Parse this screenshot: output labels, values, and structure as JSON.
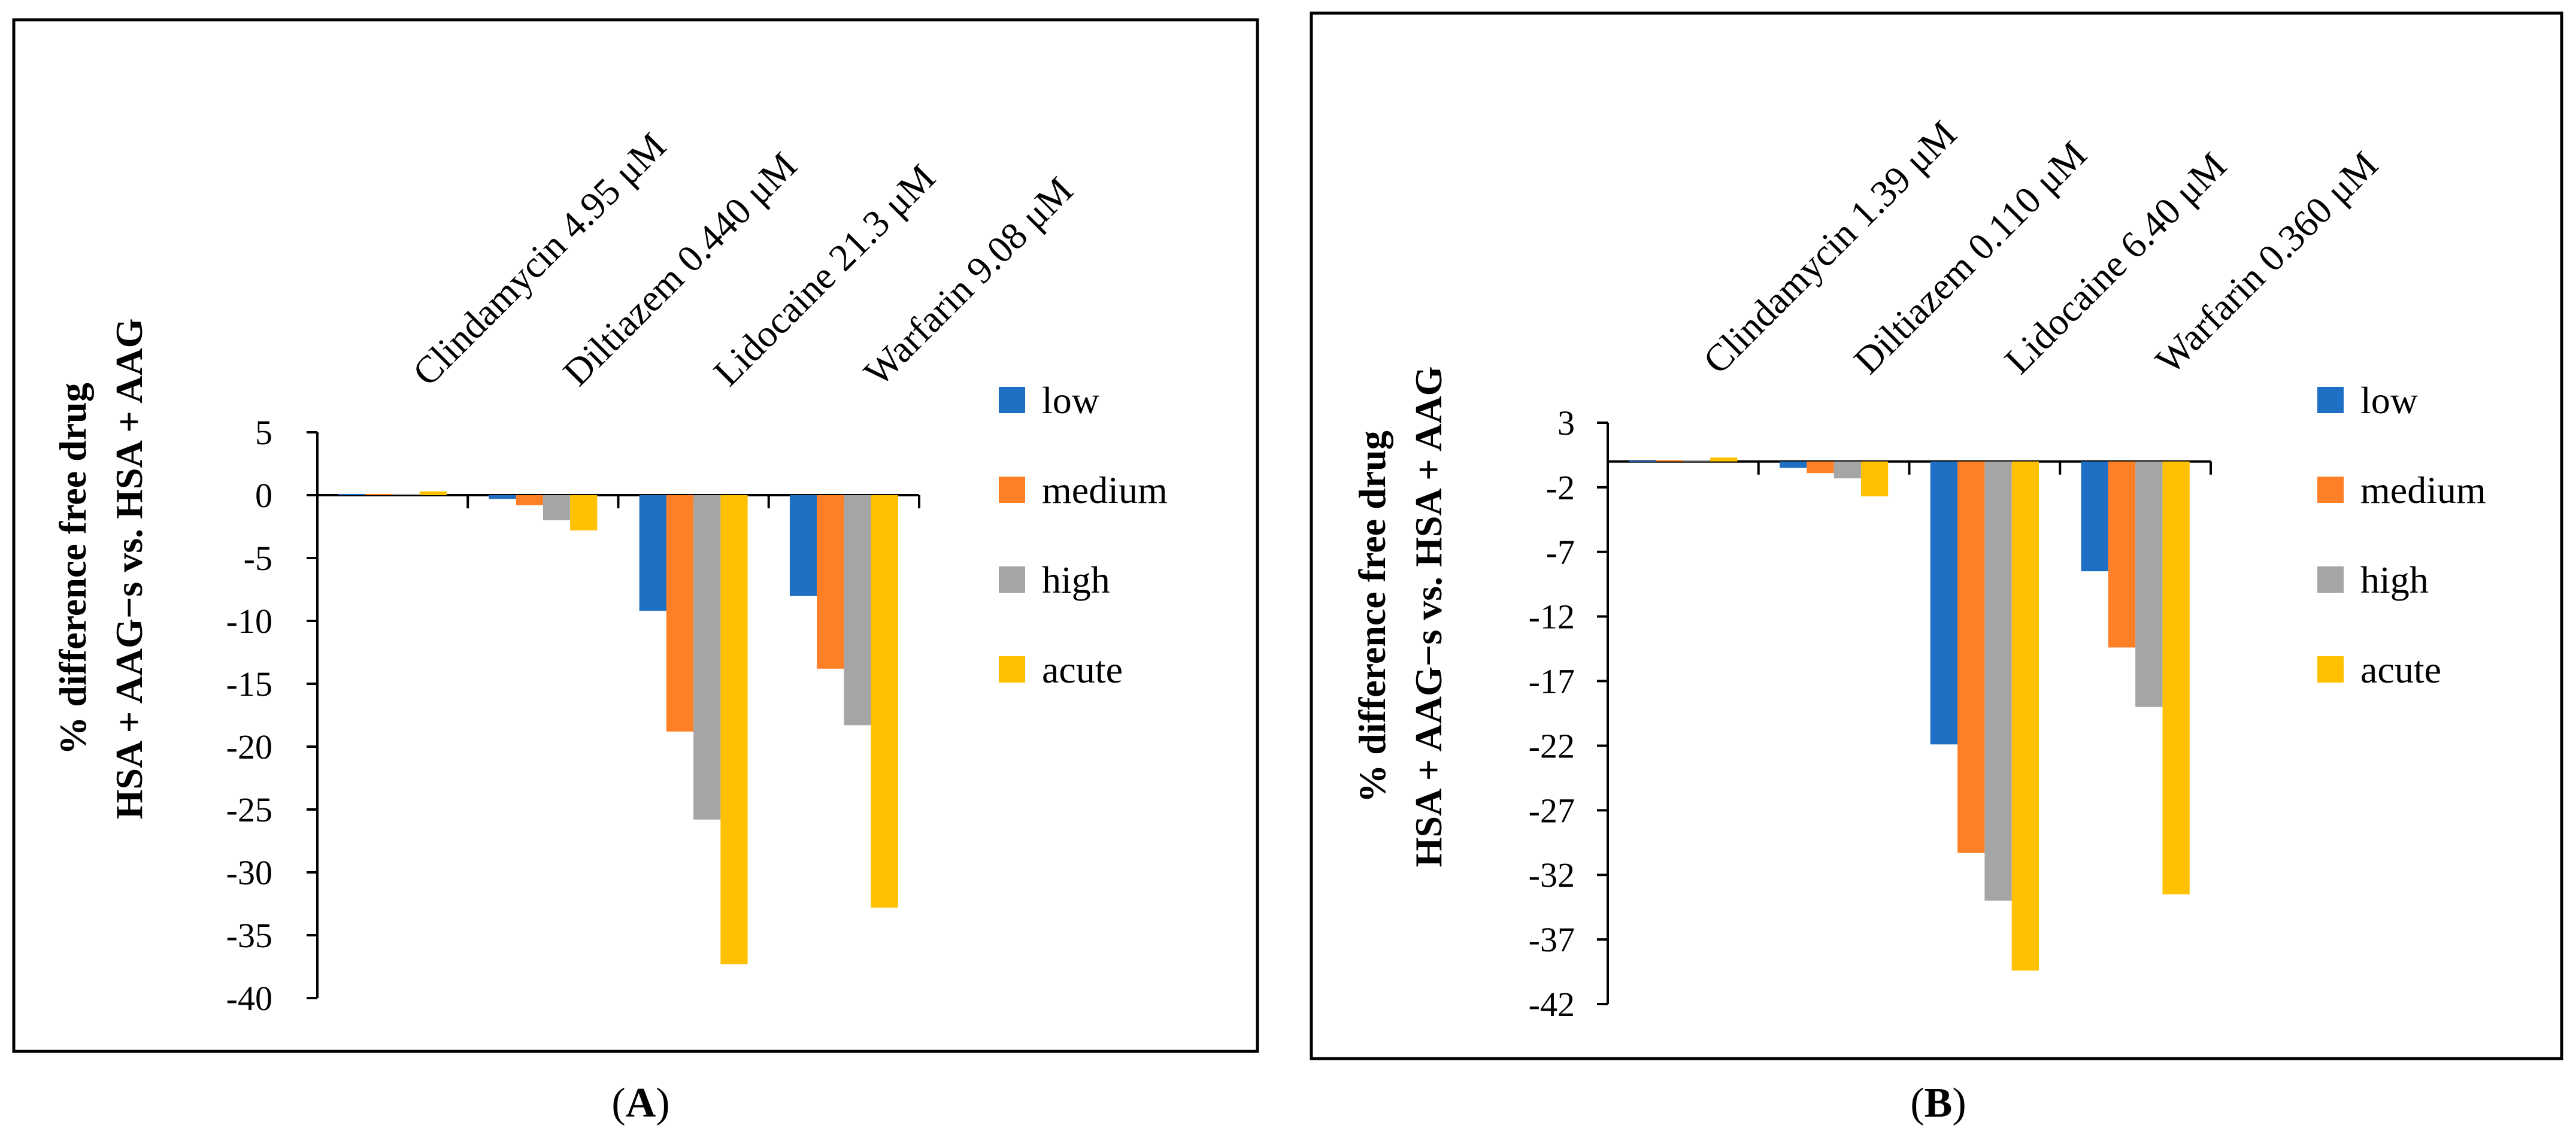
{
  "colors": {
    "low": "#1F6FC5",
    "medium": "#FF7F27",
    "high": "#A5A5A5",
    "acute": "#FFC000",
    "axis": "#000000",
    "frame": "#000000"
  },
  "chart_data": [
    {
      "type": "bar",
      "panel": "A",
      "panel_label_open": "(",
      "panel_label_letter": "A",
      "panel_label_close": ")",
      "title": "",
      "ylabel_line1": "% difference free drug",
      "ylabel_line2": "HSA + AAG−s vs. HSA + AAG",
      "categories": [
        "Clindamycin 4.95 μM",
        "Diltiazem 0.440 μM",
        "Lidocaine 21.3 μM",
        "Warfarin 9.08 μM"
      ],
      "ylim": [
        -40,
        5
      ],
      "yticks": [
        5,
        0,
        -5,
        -10,
        -15,
        -20,
        -25,
        -30,
        -35,
        -40
      ],
      "ytick_labels": [
        "5",
        "0",
        "-5",
        "-10",
        "-15",
        "-20",
        "-25",
        "-30",
        "-35",
        "-40"
      ],
      "legend": [
        "low",
        "medium",
        "high",
        "acute"
      ],
      "legend_position": "right",
      "series": [
        {
          "name": "low",
          "values": [
            0.1,
            -0.3,
            -9.2,
            -8.0
          ]
        },
        {
          "name": "medium",
          "values": [
            0.1,
            -0.8,
            -18.8,
            -13.8
          ]
        },
        {
          "name": "high",
          "values": [
            0.1,
            -2.0,
            -25.8,
            -18.3
          ]
        },
        {
          "name": "acute",
          "values": [
            0.3,
            -2.8,
            -37.3,
            -32.8
          ]
        }
      ]
    },
    {
      "type": "bar",
      "panel": "B",
      "panel_label_open": "(",
      "panel_label_letter": "B",
      "panel_label_close": ")",
      "title": "",
      "ylabel_line1": "% difference free drug",
      "ylabel_line2": "HSA + AAG−s vs. HSA + AAG",
      "categories": [
        "Clindamycin 1.39 μM",
        "Diltiazem 0.110 μM",
        "Lidocaine 6.40 μM",
        "Warfarin 0.360 μM"
      ],
      "ylim": [
        -42,
        3
      ],
      "yticks": [
        3,
        -2,
        -7,
        -12,
        -17,
        -22,
        -27,
        -32,
        -37,
        -42
      ],
      "ytick_labels": [
        "3",
        "-2",
        "-7",
        "-12",
        "-17",
        "-22",
        "-27",
        "-32",
        "-37",
        "-42"
      ],
      "legend": [
        "low",
        "medium",
        "high",
        "acute"
      ],
      "legend_position": "right",
      "series": [
        {
          "name": "low",
          "values": [
            0.05,
            -0.5,
            -21.9,
            -8.5
          ]
        },
        {
          "name": "medium",
          "values": [
            0.1,
            -0.9,
            -30.3,
            -14.4
          ]
        },
        {
          "name": "high",
          "values": [
            0.1,
            -1.3,
            -34.0,
            -19.0
          ]
        },
        {
          "name": "acute",
          "values": [
            0.3,
            -2.7,
            -39.4,
            -33.5
          ]
        }
      ]
    }
  ]
}
